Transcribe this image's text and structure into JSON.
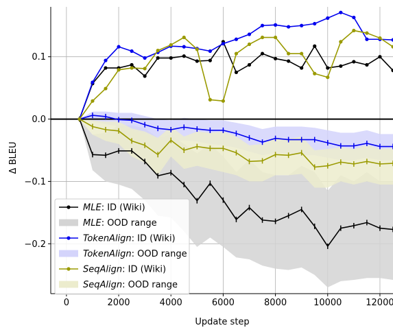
{
  "chart_data": {
    "type": "line",
    "title": "",
    "xlabel": "Update step",
    "ylabel": "Δ BLEU",
    "xlim": [
      -600,
      12500
    ],
    "ylim": [
      -0.28,
      0.18
    ],
    "xticks": [
      0,
      2000,
      4000,
      6000,
      8000,
      10000,
      12000
    ],
    "xtick_labels": [
      "0",
      "2000",
      "4000",
      "6000",
      "8000",
      "10000",
      "12000"
    ],
    "yticks": [
      -0.2,
      -0.1,
      0.0,
      0.1
    ],
    "ytick_labels": [
      "−0.2",
      "−0.1",
      "0.0",
      "0.1"
    ],
    "grid": true,
    "hline_y": 0.0,
    "legend_position": "lower-left",
    "series": [
      {
        "name": "MLE: ID (Wiki)",
        "legend_prefix": "MLE",
        "legend_suffix": ": ID (Wiki)",
        "kind": "line",
        "color": "#000000",
        "x": [
          500,
          1000,
          1500,
          2000,
          2500,
          3000,
          3500,
          4000,
          4500,
          5000,
          5500,
          6000,
          6500,
          7000,
          7500,
          8000,
          8500,
          9000,
          9500,
          10000,
          10500,
          11000,
          11500,
          12000,
          12500
        ],
        "values": [
          0.0,
          0.057,
          0.082,
          0.082,
          0.087,
          0.069,
          0.098,
          0.098,
          0.101,
          0.093,
          0.094,
          0.124,
          0.075,
          0.087,
          0.105,
          0.097,
          0.093,
          0.082,
          0.117,
          0.082,
          0.085,
          0.092,
          0.087,
          0.1,
          0.078
        ]
      },
      {
        "name": "MLE: OOD range",
        "legend_prefix": "MLE",
        "legend_suffix": ": OOD range",
        "kind": "range",
        "color": "#000000",
        "fill_color": "#d4d4d4",
        "x": [
          500,
          1000,
          1500,
          2000,
          2500,
          3000,
          3500,
          4000,
          4500,
          5000,
          5500,
          6000,
          6500,
          7000,
          7500,
          8000,
          8500,
          9000,
          9500,
          10000,
          10500,
          11000,
          11500,
          12000,
          12500
        ],
        "values": [
          0.0,
          -0.057,
          -0.058,
          -0.051,
          -0.051,
          -0.068,
          -0.091,
          -0.086,
          -0.105,
          -0.131,
          -0.103,
          -0.13,
          -0.161,
          -0.142,
          -0.162,
          -0.164,
          -0.155,
          -0.145,
          -0.172,
          -0.204,
          -0.175,
          -0.171,
          -0.166,
          -0.175,
          -0.177
        ],
        "lower": [
          0.0,
          -0.082,
          -0.1,
          -0.105,
          -0.112,
          -0.13,
          -0.155,
          -0.158,
          -0.18,
          -0.205,
          -0.19,
          -0.205,
          -0.222,
          -0.225,
          -0.235,
          -0.24,
          -0.242,
          -0.238,
          -0.25,
          -0.27,
          -0.26,
          -0.258,
          -0.255,
          -0.255,
          -0.258
        ],
        "upper": [
          0.0,
          -0.025,
          -0.022,
          -0.01,
          -0.01,
          -0.015,
          -0.03,
          -0.025,
          -0.04,
          -0.055,
          -0.04,
          -0.06,
          -0.085,
          -0.065,
          -0.085,
          -0.09,
          -0.09,
          -0.075,
          -0.085,
          -0.115,
          -0.09,
          -0.1,
          -0.085,
          -0.1,
          -0.1
        ]
      },
      {
        "name": "TokenAlign: ID (Wiki)",
        "legend_prefix": "TokenAlign",
        "legend_suffix": ": ID (Wiki)",
        "kind": "line",
        "color": "#0000ee",
        "x": [
          500,
          1000,
          1500,
          2000,
          2500,
          3000,
          3500,
          4000,
          4500,
          5000,
          5500,
          6000,
          6500,
          7000,
          7500,
          8000,
          8500,
          9000,
          9500,
          10000,
          10500,
          11000,
          11500,
          12000,
          12500
        ],
        "values": [
          0.0,
          0.059,
          0.094,
          0.116,
          0.109,
          0.098,
          0.107,
          0.117,
          0.116,
          0.113,
          0.109,
          0.121,
          0.128,
          0.136,
          0.15,
          0.151,
          0.148,
          0.15,
          0.153,
          0.162,
          0.171,
          0.163,
          0.128,
          0.128,
          0.127
        ]
      },
      {
        "name": "TokenAlign: OOD range",
        "legend_prefix": "TokenAlign",
        "legend_suffix": ": OOD range",
        "kind": "range",
        "color": "#0000ee",
        "fill_color": "#d4d4fb",
        "x": [
          500,
          1000,
          1500,
          2000,
          2500,
          3000,
          3500,
          4000,
          4500,
          5000,
          5500,
          6000,
          6500,
          7000,
          7500,
          8000,
          8500,
          9000,
          9500,
          10000,
          10500,
          11000,
          11500,
          12000,
          12500
        ],
        "values": [
          0.0,
          0.006,
          0.004,
          -0.001,
          -0.002,
          -0.009,
          -0.015,
          -0.017,
          -0.013,
          -0.016,
          -0.018,
          -0.018,
          -0.023,
          -0.03,
          -0.037,
          -0.031,
          -0.033,
          -0.033,
          -0.033,
          -0.038,
          -0.043,
          -0.043,
          -0.039,
          -0.044,
          -0.044
        ],
        "lower": [
          0.0,
          -0.004,
          -0.008,
          -0.012,
          -0.018,
          -0.024,
          -0.032,
          -0.036,
          -0.034,
          -0.036,
          -0.04,
          -0.042,
          -0.046,
          -0.052,
          -0.058,
          -0.054,
          -0.056,
          -0.058,
          -0.058,
          -0.062,
          -0.066,
          -0.066,
          -0.062,
          -0.066,
          -0.066
        ],
        "upper": [
          0.0,
          0.012,
          0.012,
          0.01,
          0.01,
          0.005,
          0.0,
          -0.002,
          0.002,
          0.0,
          -0.002,
          -0.002,
          -0.006,
          -0.01,
          -0.016,
          -0.012,
          -0.012,
          -0.012,
          -0.014,
          -0.018,
          -0.022,
          -0.022,
          -0.018,
          -0.024,
          -0.024
        ]
      },
      {
        "name": "SeqAlign: ID (Wiki)",
        "legend_prefix": "SeqAlign",
        "legend_suffix": ": ID (Wiki)",
        "kind": "line",
        "color": "#9a9a00",
        "x": [
          500,
          1000,
          1500,
          2000,
          2500,
          3000,
          3500,
          4000,
          4500,
          5000,
          5500,
          6000,
          6500,
          7000,
          7500,
          8000,
          8500,
          9000,
          9500,
          10000,
          10500,
          11000,
          11500,
          12000,
          12500
        ],
        "values": [
          0.0,
          0.029,
          0.049,
          0.079,
          0.082,
          0.081,
          0.11,
          0.119,
          0.131,
          0.112,
          0.031,
          0.029,
          0.105,
          0.12,
          0.131,
          0.131,
          0.105,
          0.105,
          0.073,
          0.067,
          0.124,
          0.142,
          0.138,
          0.13,
          0.116
        ]
      },
      {
        "name": "SeqAlign: OOD range",
        "legend_prefix": "SeqAlign",
        "legend_suffix": ": OOD range",
        "kind": "range",
        "color": "#9a9a00",
        "fill_color": "#ececcd",
        "x": [
          500,
          1000,
          1500,
          2000,
          2500,
          3000,
          3500,
          4000,
          4500,
          5000,
          5500,
          6000,
          6500,
          7000,
          7500,
          8000,
          8500,
          9000,
          9500,
          10000,
          10500,
          11000,
          11500,
          12000,
          12500
        ],
        "values": [
          0.0,
          -0.012,
          -0.017,
          -0.019,
          -0.035,
          -0.042,
          -0.057,
          -0.034,
          -0.05,
          -0.044,
          -0.047,
          -0.047,
          -0.054,
          -0.068,
          -0.067,
          -0.057,
          -0.058,
          -0.054,
          -0.077,
          -0.075,
          -0.069,
          -0.072,
          -0.068,
          -0.072,
          -0.071
        ],
        "lower": [
          0.0,
          -0.025,
          -0.035,
          -0.04,
          -0.06,
          -0.07,
          -0.09,
          -0.06,
          -0.08,
          -0.075,
          -0.08,
          -0.085,
          -0.09,
          -0.1,
          -0.1,
          -0.09,
          -0.09,
          -0.088,
          -0.11,
          -0.11,
          -0.1,
          -0.105,
          -0.1,
          -0.105,
          -0.105
        ],
        "upper": [
          0.0,
          -0.002,
          -0.004,
          -0.004,
          -0.015,
          -0.02,
          -0.03,
          -0.012,
          -0.028,
          -0.02,
          -0.022,
          -0.02,
          -0.028,
          -0.042,
          -0.04,
          -0.03,
          -0.032,
          -0.028,
          -0.05,
          -0.048,
          -0.045,
          -0.048,
          -0.042,
          -0.048,
          -0.047
        ]
      }
    ]
  }
}
